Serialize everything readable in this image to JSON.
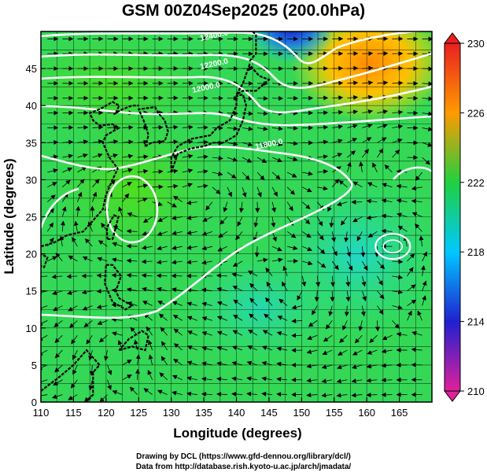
{
  "title": "GSM 00Z04Sep2025 (200.0hPa)",
  "chart_data": {
    "type": "map",
    "title": "GSM 00Z04Sep2025 (200.0hPa)",
    "xlabel": "Longitude (degrees)",
    "ylabel": "Latitude  (degrees)",
    "xlim": [
      110,
      170
    ],
    "ylim": [
      0,
      50
    ],
    "xticks": [
      "110",
      "115",
      "120",
      "125",
      "130",
      "135",
      "140",
      "145",
      "150",
      "155",
      "160",
      "165"
    ],
    "yticks": [
      "0",
      "5",
      "10",
      "15",
      "20",
      "25",
      "30",
      "35",
      "40",
      "45"
    ],
    "colorbar": {
      "ticks": [
        "210",
        "214",
        "218",
        "222",
        "226",
        "230"
      ],
      "range": [
        210,
        230
      ],
      "colors": [
        "#e0209a",
        "#2020d0",
        "#00c8ff",
        "#20d040",
        "#ff9a00",
        "#e82020"
      ]
    },
    "contour_labels": [
      "12400.0",
      "12200.0",
      "12000.0",
      "11800.0"
    ],
    "field_features": [
      {
        "name": "warm-ridge",
        "lon": 157,
        "lat": 45,
        "value": 228
      },
      {
        "name": "cold-trough",
        "lon": 145,
        "lat": 48,
        "value": 214
      },
      {
        "name": "anticyclone-west",
        "lon": 124,
        "lat": 26,
        "value": 222
      },
      {
        "name": "anticyclone-center",
        "lon": 136,
        "lat": 29,
        "value": 222
      },
      {
        "name": "vortex-east",
        "lon": 164,
        "lat": 21,
        "value": 218
      },
      {
        "name": "vortex-northeast",
        "lon": 166,
        "lat": 33,
        "value": 220
      }
    ]
  },
  "credits": [
    "Drawing by DCL (https://www.gfd-dennou.org/library/dcl/)",
    "Data from http://database.rish.kyoto-u.ac.jp/arch/jmadata/"
  ]
}
